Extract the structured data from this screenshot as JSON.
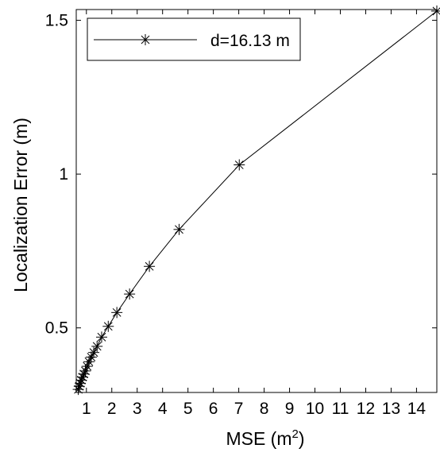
{
  "chart_data": {
    "type": "line",
    "title": "",
    "xlabel": "MSE (m",
    "xlabel_sup": "2",
    "xlabel_close": ")",
    "ylabel": "Localization Error (m)",
    "xlim": [
      0.6,
      14.8
    ],
    "ylim": [
      0.29,
      1.535
    ],
    "x_ticks": [
      1,
      2,
      3,
      4,
      5,
      6,
      7,
      8,
      9,
      10,
      11,
      12,
      13,
      14
    ],
    "x_tick_labels": [
      "1",
      "2",
      "3",
      "4",
      "5",
      "6",
      "7",
      "8",
      "9",
      "10",
      "11",
      "12",
      "13",
      "14"
    ],
    "y_ticks": [
      0.5,
      1,
      1.5
    ],
    "y_tick_labels": [
      "0.5",
      "1",
      "1.5"
    ],
    "grid": false,
    "legend_position": "top-left",
    "series": [
      {
        "name": "d=16.13 m",
        "color": "#000000",
        "marker": "asterisk",
        "x": [
          0.68,
          0.72,
          0.76,
          0.8,
          0.85,
          0.9,
          0.96,
          1.03,
          1.1,
          1.19,
          1.29,
          1.42,
          1.6,
          1.86,
          2.2,
          2.7,
          3.48,
          4.65,
          7.02,
          14.8
        ],
        "y": [
          0.3,
          0.31,
          0.32,
          0.33,
          0.34,
          0.35,
          0.36,
          0.375,
          0.39,
          0.405,
          0.42,
          0.44,
          0.47,
          0.505,
          0.55,
          0.61,
          0.7,
          0.82,
          1.03,
          1.53
        ]
      }
    ]
  }
}
